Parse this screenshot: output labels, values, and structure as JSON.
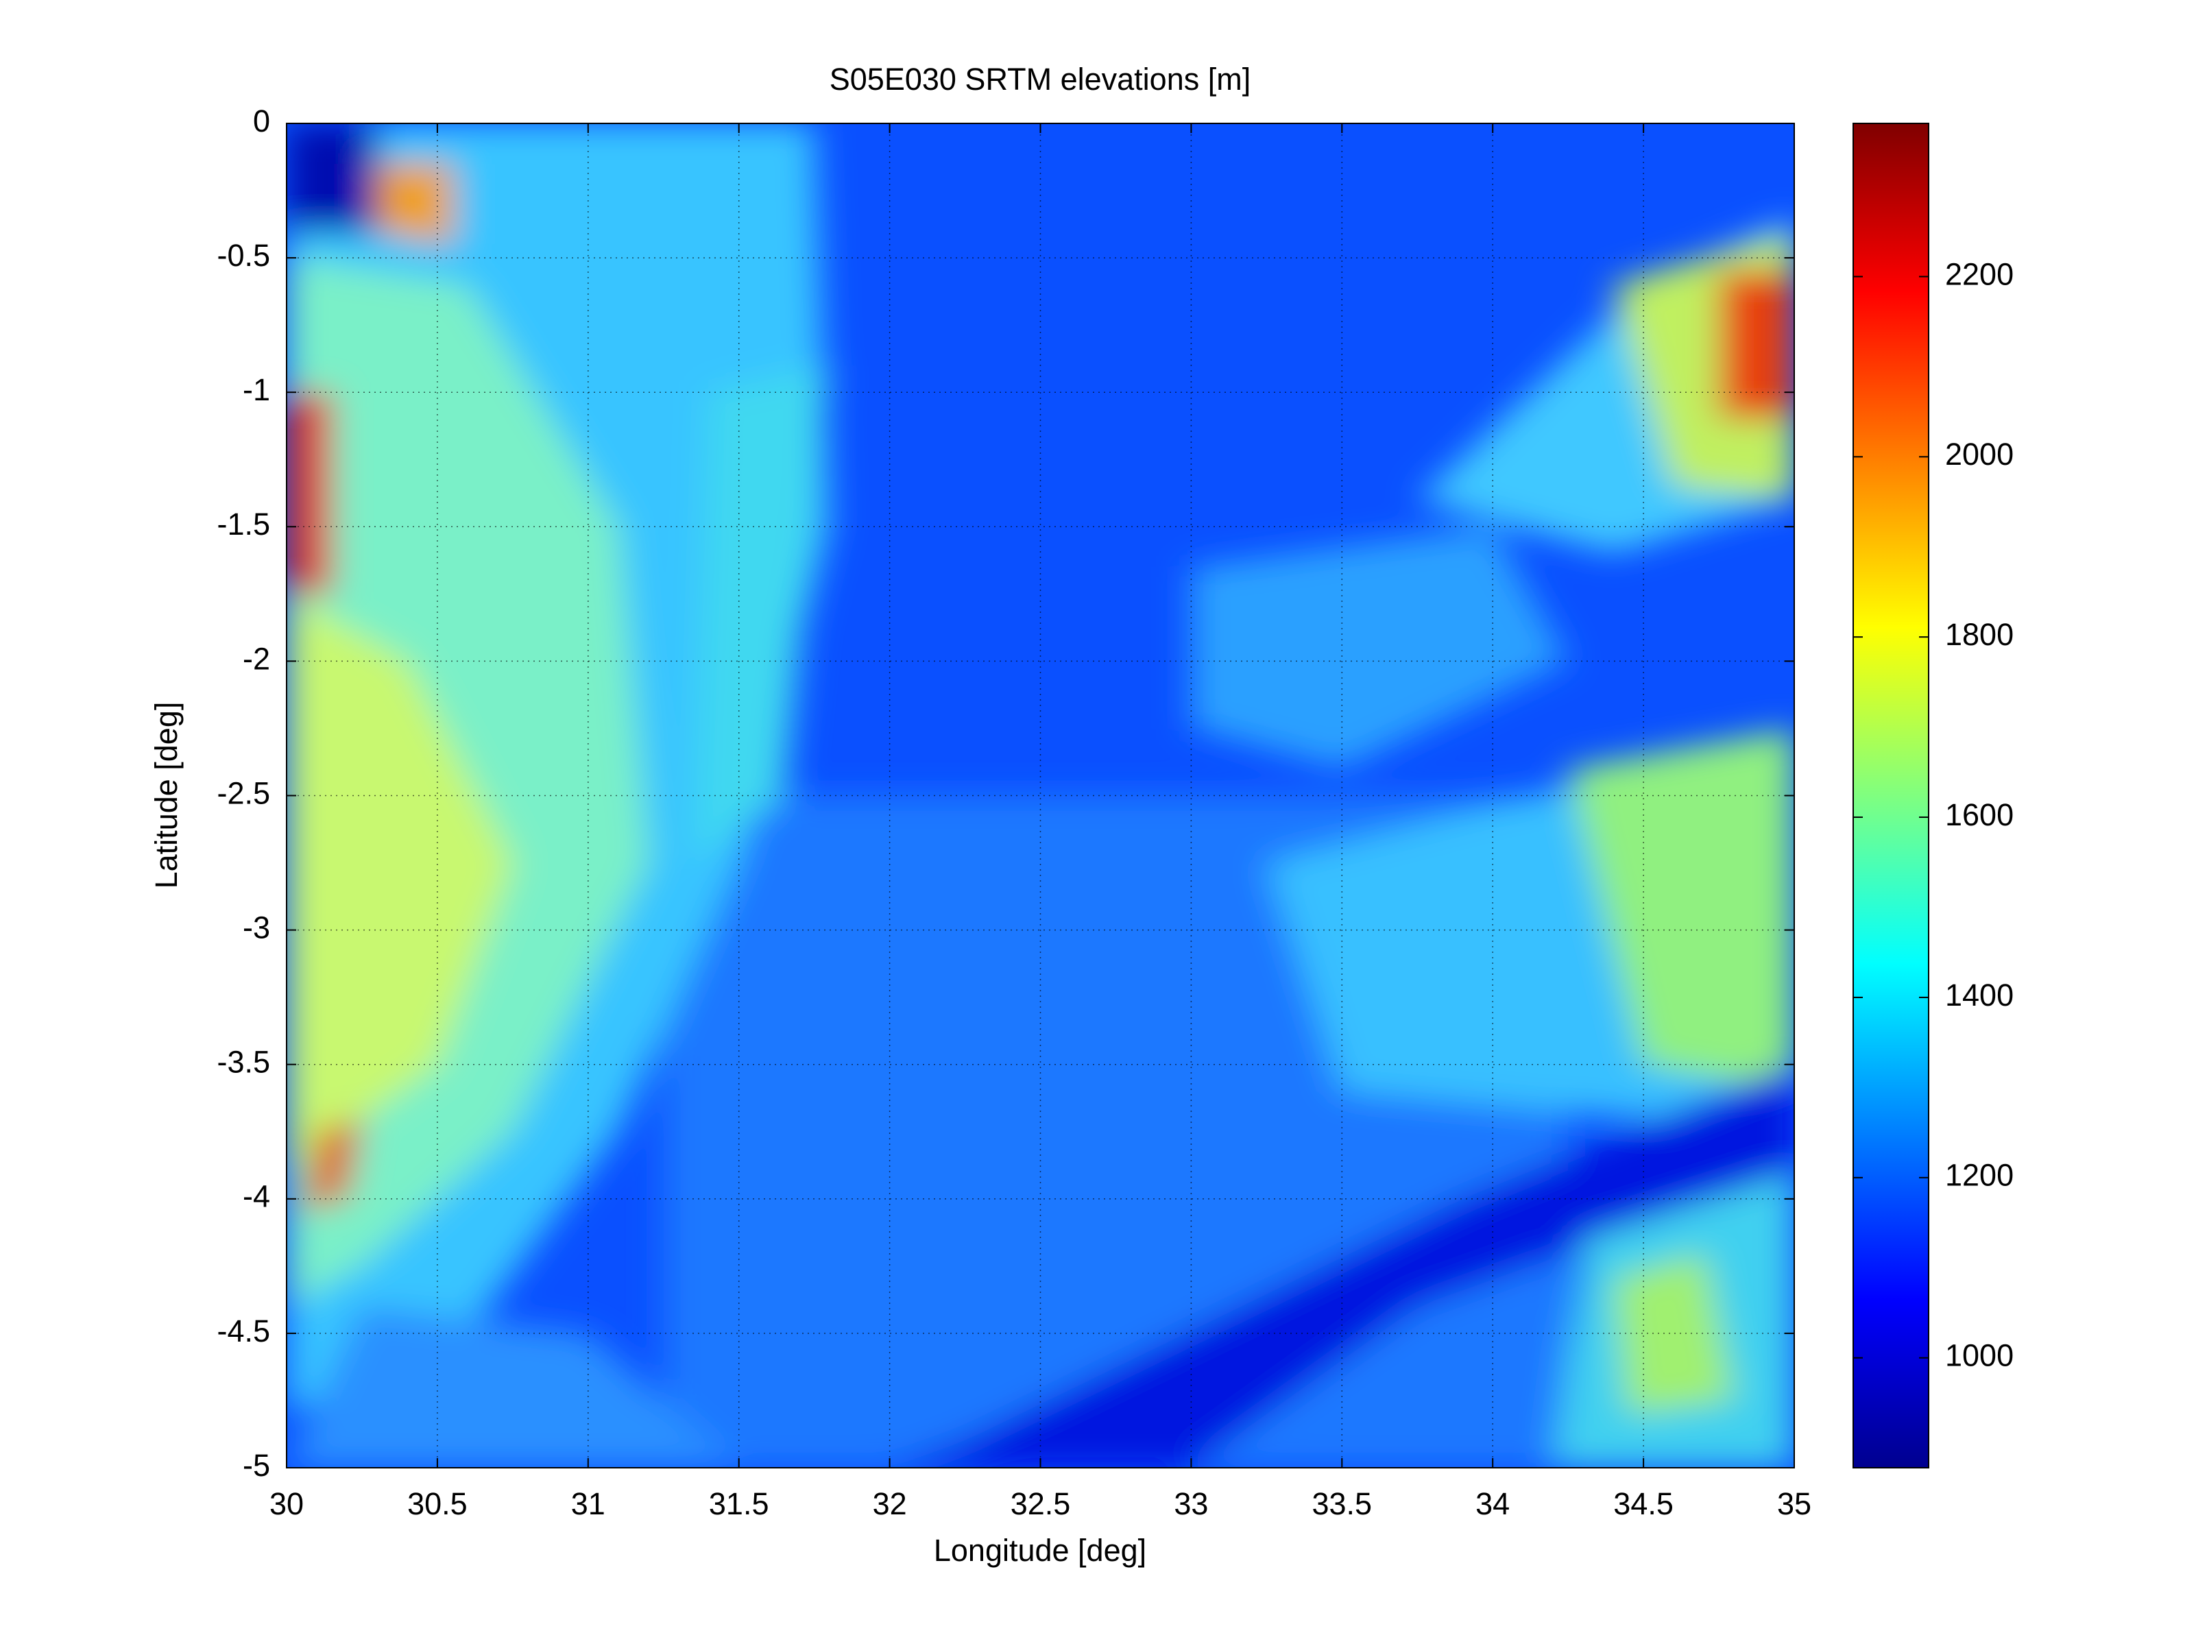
{
  "chart_data": {
    "type": "heatmap",
    "title": "S05E030 SRTM elevations [m]",
    "xlabel": "Longitude [deg]",
    "ylabel": "Latitude [deg]",
    "xlim": [
      30,
      35
    ],
    "ylim": [
      -5,
      0
    ],
    "xticks": [
      30,
      30.5,
      31,
      31.5,
      32,
      32.5,
      33,
      33.5,
      34,
      34.5,
      35
    ],
    "yticks": [
      0,
      -0.5,
      -1,
      -1.5,
      -2,
      -2.5,
      -3,
      -3.5,
      -4,
      -4.5,
      -5
    ],
    "grid": true,
    "colorbar": {
      "lim": [
        878,
        2370
      ],
      "ticks": [
        1000,
        1200,
        1400,
        1600,
        1800,
        2000,
        2200
      ],
      "colormap": "jet"
    }
  }
}
